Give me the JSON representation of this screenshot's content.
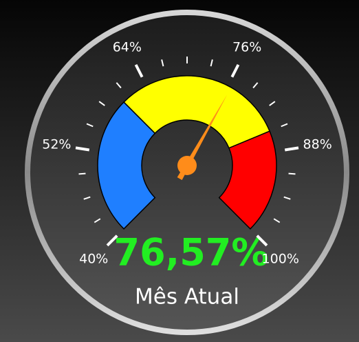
{
  "chart_data": {
    "type": "gauge",
    "value": 76.57,
    "value_label": "76,57%",
    "label": "Mês Atual",
    "range": [
      40,
      100
    ],
    "ticks": [
      {
        "value": 40,
        "label": "40%"
      },
      {
        "value": 52,
        "label": "52%"
      },
      {
        "value": 64,
        "label": "64%"
      },
      {
        "value": 76,
        "label": "76%"
      },
      {
        "value": 88,
        "label": "88%"
      },
      {
        "value": 100,
        "label": "100%"
      }
    ],
    "minor_ticks": [
      43,
      46,
      49,
      55,
      58,
      61,
      67,
      70,
      73,
      79,
      82,
      85,
      91,
      94,
      97
    ],
    "bands": [
      {
        "from": 40,
        "to": 60,
        "color": "#1f7fff"
      },
      {
        "from": 60,
        "to": 85,
        "color": "#ffff00"
      },
      {
        "from": 85,
        "to": 100,
        "color": "#ff0000"
      }
    ],
    "needle_color": "#ff8c1a",
    "value_color": "#22ee22"
  }
}
